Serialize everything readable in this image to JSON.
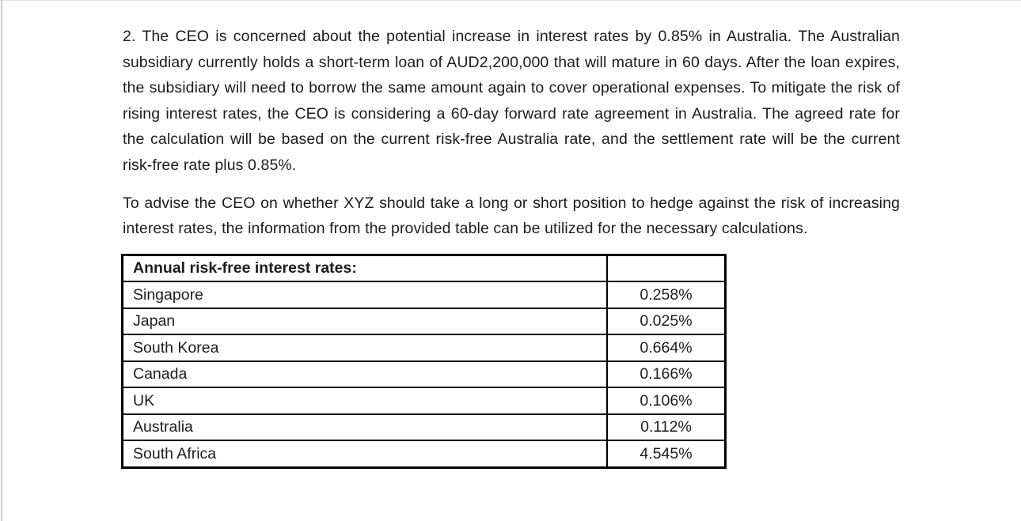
{
  "document": {
    "paragraph1": "2. The CEO is concerned about the potential increase in interest rates by 0.85% in Australia. The Australian subsidiary currently holds a short-term loan of AUD2,200,000 that will mature in 60 days. After the loan expires, the subsidiary will need to borrow the same amount again to cover operational expenses. To mitigate the risk of rising interest rates, the CEO is considering a 60-day forward rate agreement in Australia. The agreed rate for the calculation will be based on the current risk-free Australia rate, and the settlement rate will be the current risk-free rate plus 0.85%.",
    "paragraph2": "To advise the CEO on whether XYZ should take a long or short position to hedge against the risk of increasing interest rates, the information from the provided table can be utilized for the necessary calculations."
  },
  "table": {
    "header": "Annual risk-free interest rates:",
    "header_value": "",
    "rows": [
      {
        "country": "Singapore",
        "rate": "0.258%"
      },
      {
        "country": "Japan",
        "rate": "0.025%"
      },
      {
        "country": "South Korea",
        "rate": "0.664%"
      },
      {
        "country": "Canada",
        "rate": "0.166%"
      },
      {
        "country": "UK",
        "rate": "0.106%"
      },
      {
        "country": "Australia",
        "rate": "0.112%"
      },
      {
        "country": "South Africa",
        "rate": "4.545%"
      }
    ]
  }
}
